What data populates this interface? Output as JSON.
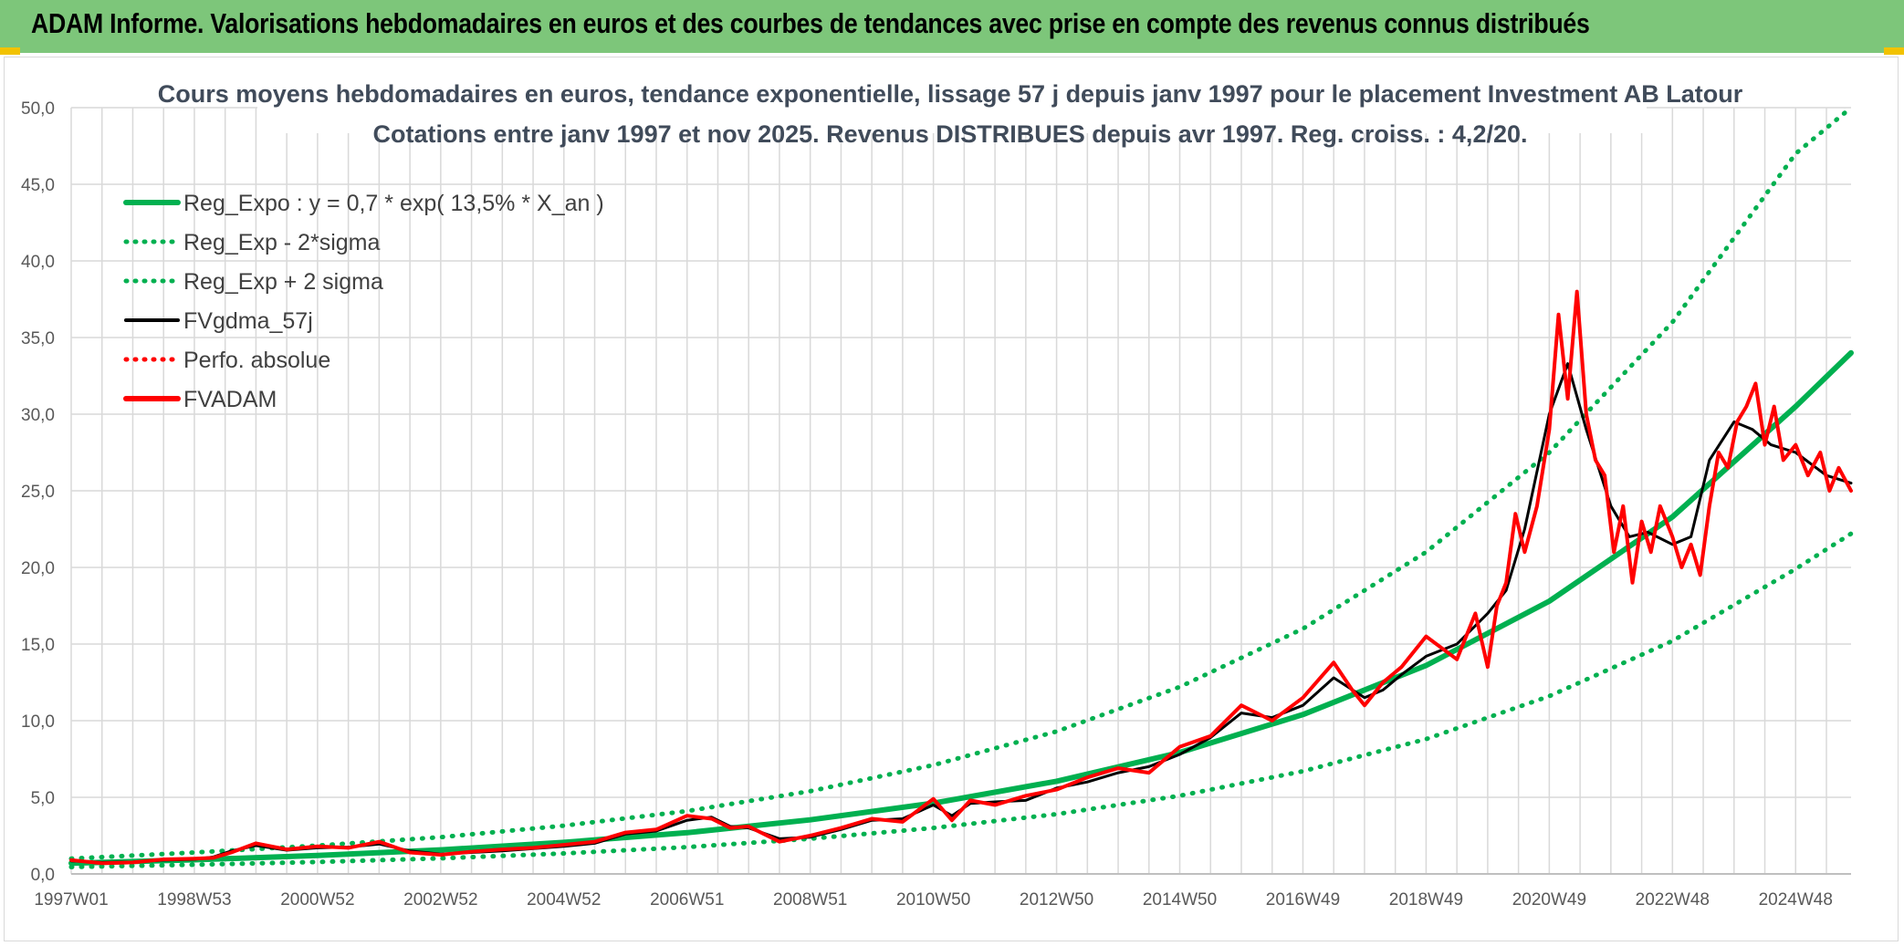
{
  "banner": {
    "title": "ADAM Informe. Valorisations hebdomadaires en euros et des courbes de tendances avec prise en compte des revenus connus distribués"
  },
  "colors": {
    "banner_bg": "#7dc67a",
    "banner_accent": "#f2c200",
    "reg_expo": "#00b050",
    "fvgdma": "#000000",
    "fvadam": "#ff0000",
    "grid": "#d9d9d9"
  },
  "chart_data": {
    "type": "line",
    "title": "Cours moyens hebdomadaires en euros, tendance exponentielle, lissage 57 j depuis janv 1997 pour le placement Investment AB Latour",
    "subtitle": "Cotations entre janv 1997 et nov 2025. Revenus DISTRIBUES depuis avr 1997. Reg. croiss. : 4,2/20.",
    "xlabel": "",
    "ylabel": "",
    "ylim": [
      0,
      50
    ],
    "xlim": [
      1997.0,
      2025.9
    ],
    "y_ticks": [
      "0,0",
      "5,0",
      "10,0",
      "15,0",
      "20,0",
      "25,0",
      "30,0",
      "35,0",
      "40,0",
      "45,0",
      "50,0"
    ],
    "y_tick_values": [
      0,
      5,
      10,
      15,
      20,
      25,
      30,
      35,
      40,
      45,
      50
    ],
    "x_ticks": [
      "1997W01",
      "1998W53",
      "2000W52",
      "2002W52",
      "2004W52",
      "2006W51",
      "2008W51",
      "2010W50",
      "2012W50",
      "2014W50",
      "2016W49",
      "2018W49",
      "2020W49",
      "2022W48",
      "2024W48"
    ],
    "x_tick_years": [
      1997.0,
      1999.0,
      2001.0,
      2003.0,
      2005.0,
      2007.0,
      2009.0,
      2011.0,
      2013.0,
      2015.0,
      2017.0,
      2019.0,
      2021.0,
      2023.0,
      2025.0
    ],
    "grid": true,
    "legend_position": "top-left",
    "legend": [
      {
        "name": "Reg_Expo : y = 0,7 * exp( 13,5% *  X_an )",
        "color": "#00b050",
        "style": "solid"
      },
      {
        "name": "Reg_Exp - 2*sigma",
        "color": "#00b050",
        "style": "dotted"
      },
      {
        "name": "Reg_Exp + 2 sigma",
        "color": "#00b050",
        "style": "dotted"
      },
      {
        "name": "FVgdma_57j",
        "color": "#000000",
        "style": "solid"
      },
      {
        "name": "Perfo. absolue",
        "color": "#ff0000",
        "style": "dotted"
      },
      {
        "name": "FVADAM",
        "color": "#ff0000",
        "style": "solid"
      }
    ],
    "series": [
      {
        "name": "Reg_Expo",
        "x": [
          1997.0,
          1999.0,
          2001.0,
          2003.0,
          2005.0,
          2007.0,
          2009.0,
          2011.0,
          2013.0,
          2015.0,
          2017.0,
          2019.0,
          2021.0,
          2023.0,
          2025.0,
          2025.9
        ],
        "values": [
          0.7,
          0.92,
          1.2,
          1.57,
          2.06,
          2.69,
          3.53,
          4.62,
          6.05,
          7.92,
          10.4,
          13.6,
          17.8,
          23.3,
          30.5,
          34.0
        ]
      },
      {
        "name": "Reg_Exp - 2*sigma",
        "x": [
          1997.0,
          1999.0,
          2001.0,
          2003.0,
          2005.0,
          2007.0,
          2009.0,
          2011.0,
          2013.0,
          2015.0,
          2017.0,
          2019.0,
          2021.0,
          2023.0,
          2025.0,
          2025.9
        ],
        "values": [
          0.45,
          0.6,
          0.78,
          1.02,
          1.34,
          1.75,
          2.3,
          3.0,
          3.9,
          5.1,
          6.7,
          8.8,
          11.6,
          15.2,
          19.9,
          22.2
        ]
      },
      {
        "name": "Reg_Exp + 2 sigma",
        "x": [
          1997.0,
          1999.0,
          2001.0,
          2003.0,
          2005.0,
          2007.0,
          2009.0,
          2011.0,
          2013.0,
          2015.0,
          2017.0,
          2019.0,
          2021.0,
          2023.0,
          2025.0,
          2025.9
        ],
        "values": [
          1.0,
          1.4,
          1.85,
          2.4,
          3.15,
          4.1,
          5.4,
          7.1,
          9.3,
          12.2,
          16.0,
          21.0,
          27.5,
          36.0,
          47.0,
          50.0
        ]
      },
      {
        "name": "FVgdma_57j",
        "x": [
          1997.0,
          1997.5,
          1998.0,
          1998.5,
          1999.0,
          1999.3,
          1999.6,
          2000.0,
          2000.5,
          2001.0,
          2001.5,
          2002.0,
          2002.5,
          2003.0,
          2003.5,
          2004.0,
          2004.5,
          2005.0,
          2005.5,
          2006.0,
          2006.5,
          2007.0,
          2007.4,
          2007.7,
          2008.0,
          2008.5,
          2009.0,
          2009.5,
          2010.0,
          2010.5,
          2011.0,
          2011.3,
          2011.6,
          2012.0,
          2012.5,
          2013.0,
          2013.5,
          2014.0,
          2014.5,
          2015.0,
          2015.5,
          2016.0,
          2016.5,
          2017.0,
          2017.5,
          2018.0,
          2018.3,
          2018.6,
          2019.0,
          2019.5,
          2020.0,
          2020.3,
          2020.6,
          2021.0,
          2021.3,
          2021.6,
          2022.0,
          2022.3,
          2022.6,
          2023.0,
          2023.3,
          2023.6,
          2024.0,
          2024.3,
          2024.6,
          2025.0,
          2025.5,
          2025.9
        ],
        "values": [
          0.85,
          0.75,
          0.78,
          0.9,
          0.95,
          1.1,
          1.5,
          1.85,
          1.55,
          1.7,
          1.75,
          1.95,
          1.5,
          1.3,
          1.4,
          1.5,
          1.65,
          1.8,
          2.0,
          2.6,
          2.8,
          3.5,
          3.7,
          3.1,
          3.0,
          2.3,
          2.4,
          2.9,
          3.5,
          3.6,
          4.5,
          3.8,
          4.6,
          4.7,
          4.8,
          5.6,
          6.0,
          6.6,
          7.0,
          7.8,
          8.9,
          10.5,
          10.2,
          11.0,
          12.8,
          11.5,
          12.0,
          13.0,
          14.2,
          15.0,
          17.0,
          18.5,
          22.5,
          30.0,
          33.3,
          29.0,
          24.0,
          22.0,
          22.3,
          21.5,
          22.0,
          27.0,
          29.5,
          29.0,
          28.0,
          27.5,
          26.0,
          25.5
        ]
      },
      {
        "name": "FVADAM",
        "x": [
          1997.0,
          1997.5,
          1998.0,
          1998.5,
          1999.0,
          1999.3,
          1999.6,
          2000.0,
          2000.5,
          2001.0,
          2001.5,
          2002.0,
          2002.5,
          2003.0,
          2003.5,
          2004.0,
          2004.5,
          2005.0,
          2005.5,
          2006.0,
          2006.5,
          2007.0,
          2007.4,
          2007.7,
          2008.0,
          2008.5,
          2009.0,
          2009.5,
          2010.0,
          2010.5,
          2011.0,
          2011.3,
          2011.6,
          2012.0,
          2012.5,
          2013.0,
          2013.5,
          2014.0,
          2014.5,
          2015.0,
          2015.5,
          2016.0,
          2016.5,
          2017.0,
          2017.5,
          2017.8,
          2018.0,
          2018.3,
          2018.6,
          2019.0,
          2019.5,
          2019.8,
          2020.0,
          2020.15,
          2020.3,
          2020.45,
          2020.6,
          2020.8,
          2021.0,
          2021.15,
          2021.3,
          2021.45,
          2021.6,
          2021.75,
          2021.9,
          2022.05,
          2022.2,
          2022.35,
          2022.5,
          2022.65,
          2022.8,
          2023.0,
          2023.15,
          2023.3,
          2023.45,
          2023.6,
          2023.75,
          2023.9,
          2024.05,
          2024.2,
          2024.35,
          2024.5,
          2024.65,
          2024.8,
          2025.0,
          2025.2,
          2025.4,
          2025.55,
          2025.7,
          2025.9
        ],
        "values": [
          0.9,
          0.7,
          0.75,
          0.95,
          1.0,
          1.05,
          1.4,
          2.0,
          1.6,
          1.8,
          1.7,
          2.1,
          1.4,
          1.25,
          1.45,
          1.6,
          1.7,
          1.9,
          2.1,
          2.7,
          2.9,
          3.8,
          3.6,
          3.0,
          3.1,
          2.1,
          2.5,
          3.0,
          3.6,
          3.4,
          4.9,
          3.5,
          4.8,
          4.5,
          5.1,
          5.5,
          6.3,
          6.9,
          6.6,
          8.3,
          9.0,
          11.0,
          10.0,
          11.5,
          13.8,
          12.0,
          11.0,
          12.5,
          13.5,
          15.5,
          14.0,
          17.0,
          13.5,
          17.5,
          19.0,
          23.5,
          21.0,
          24.0,
          29.0,
          36.5,
          31.0,
          38.0,
          30.0,
          27.0,
          26.0,
          21.0,
          24.0,
          19.0,
          23.0,
          21.0,
          24.0,
          22.0,
          20.0,
          21.5,
          19.5,
          24.0,
          27.5,
          26.5,
          29.5,
          30.5,
          32.0,
          28.0,
          30.5,
          27.0,
          28.0,
          26.0,
          27.5,
          25.0,
          26.5,
          25.0
        ]
      }
    ]
  }
}
